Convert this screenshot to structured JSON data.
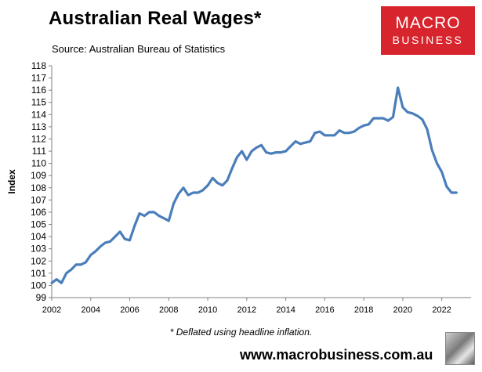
{
  "header": {
    "title": "Australian Real Wages*",
    "source": "Source: Australian Bureau of Statistics"
  },
  "logo": {
    "line1": "MACRO",
    "line2": "BUSINESS"
  },
  "footer": {
    "footnote": "* Deflated using headline inflation.",
    "url": "www.macrobusiness.com.au"
  },
  "colors": {
    "line": "#4a7ebb",
    "logo_bg": "#d8242c",
    "axis": "#808080"
  },
  "chart_data": {
    "type": "line",
    "title": "Australian Real Wages*",
    "ylabel": "Index",
    "xlabel": "",
    "ylim": [
      99,
      118
    ],
    "xlim": [
      2002,
      2023.5
    ],
    "yticks": [
      99,
      100,
      101,
      102,
      103,
      104,
      105,
      106,
      107,
      108,
      109,
      110,
      111,
      112,
      113,
      114,
      115,
      116,
      117,
      118
    ],
    "xticks": [
      2002,
      2004,
      2006,
      2008,
      2010,
      2012,
      2014,
      2016,
      2018,
      2020,
      2022
    ],
    "grid": false,
    "series": [
      {
        "name": "",
        "x": [
          2002.0,
          2002.25,
          2002.5,
          2002.75,
          2003.0,
          2003.25,
          2003.5,
          2003.75,
          2004.0,
          2004.25,
          2004.5,
          2004.75,
          2005.0,
          2005.25,
          2005.5,
          2005.75,
          2006.0,
          2006.25,
          2006.5,
          2006.75,
          2007.0,
          2007.25,
          2007.5,
          2007.75,
          2008.0,
          2008.25,
          2008.5,
          2008.75,
          2009.0,
          2009.25,
          2009.5,
          2009.75,
          2010.0,
          2010.25,
          2010.5,
          2010.75,
          2011.0,
          2011.25,
          2011.5,
          2011.75,
          2012.0,
          2012.25,
          2012.5,
          2012.75,
          2013.0,
          2013.25,
          2013.5,
          2013.75,
          2014.0,
          2014.25,
          2014.5,
          2014.75,
          2015.0,
          2015.25,
          2015.5,
          2015.75,
          2016.0,
          2016.25,
          2016.5,
          2016.75,
          2017.0,
          2017.25,
          2017.5,
          2017.75,
          2018.0,
          2018.25,
          2018.5,
          2018.75,
          2019.0,
          2019.25,
          2019.5,
          2019.75,
          2020.0,
          2020.25,
          2020.5,
          2020.75,
          2021.0,
          2021.25,
          2021.5,
          2021.75,
          2022.0,
          2022.25,
          2022.5,
          2022.75
        ],
        "values": [
          100.2,
          100.5,
          100.2,
          101.0,
          101.3,
          101.7,
          101.7,
          101.9,
          102.5,
          102.8,
          103.2,
          103.5,
          103.6,
          104.0,
          104.4,
          103.8,
          103.7,
          104.9,
          105.9,
          105.7,
          106.0,
          106.0,
          105.7,
          105.5,
          105.3,
          106.7,
          107.5,
          108.0,
          107.4,
          107.6,
          107.6,
          107.8,
          108.2,
          108.8,
          108.4,
          108.2,
          108.6,
          109.6,
          110.5,
          111.0,
          110.3,
          111.0,
          111.3,
          111.5,
          110.9,
          110.8,
          110.9,
          110.9,
          111.0,
          111.4,
          111.8,
          111.6,
          111.7,
          111.8,
          112.5,
          112.6,
          112.3,
          112.3,
          112.3,
          112.7,
          112.5,
          112.5,
          112.6,
          112.9,
          113.1,
          113.2,
          113.7,
          113.7,
          113.7,
          113.5,
          113.8,
          116.2,
          114.6,
          114.2,
          114.1,
          113.9,
          113.6,
          112.8,
          111.1,
          110.0,
          109.3,
          108.1,
          107.6,
          107.6
        ]
      }
    ]
  }
}
